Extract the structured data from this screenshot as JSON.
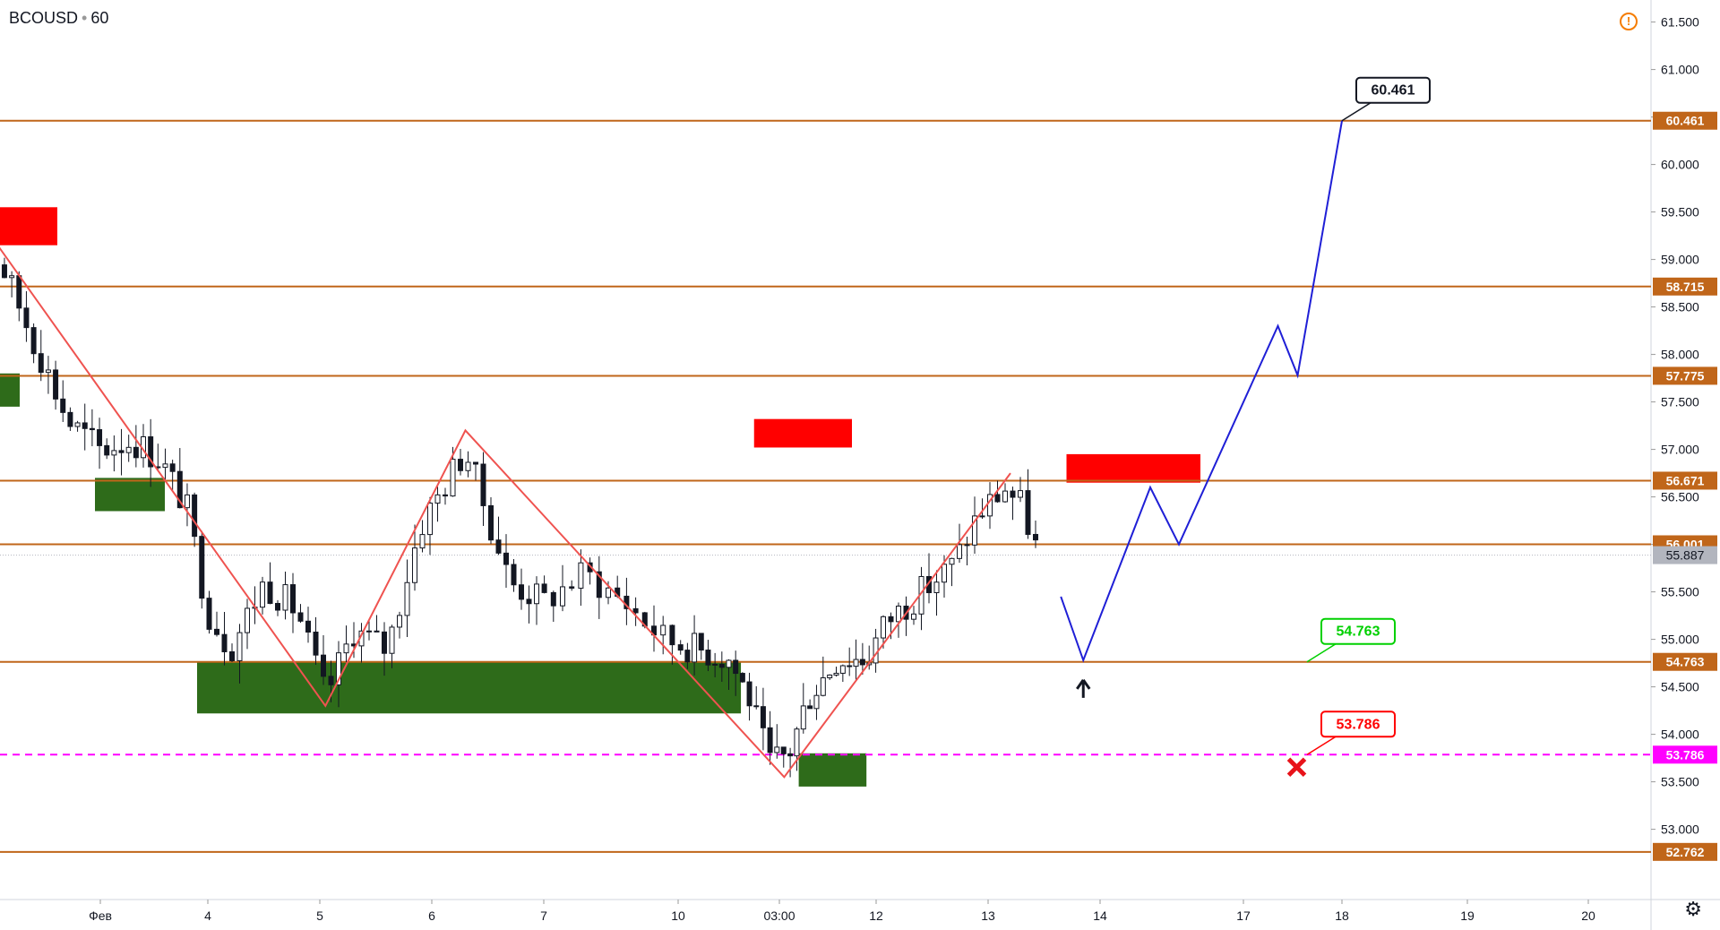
{
  "header": {
    "symbol": "BCOUSD",
    "interval": "60"
  },
  "icons": {
    "warning": "warning-icon",
    "settings": "gear-icon",
    "arrow": "up-arrow-icon",
    "cross": "cross-icon"
  },
  "colors": {
    "level_line": "#c0661a",
    "magenta": "#ff00ff",
    "zigzag": "#ef5350",
    "forecast": "#1f1fd6",
    "supply": "#ff0000",
    "demand": "#2e6b1a",
    "candle_up": "#ffffff",
    "candle_down": "#131722",
    "green_label": "#00d000",
    "red_label": "#ff0000"
  },
  "chart_data": {
    "type": "candlestick",
    "ylim": [
      52.6,
      61.6
    ],
    "grid": false,
    "y_ticks": [
      "53.000",
      "53.500",
      "54.000",
      "54.500",
      "55.000",
      "55.500",
      "56.000",
      "56.500",
      "57.000",
      "57.500",
      "58.000",
      "58.500",
      "59.000",
      "59.500",
      "60.000",
      "60.500",
      "61.000",
      "61.500"
    ],
    "x_ticks": [
      "Фев",
      "4",
      "5",
      "6",
      "7",
      "10",
      "03:00",
      "12",
      "13",
      "14",
      "17",
      "18",
      "19",
      "20"
    ],
    "levels": [
      {
        "value": 60.461,
        "label": "60.461",
        "style": "solid"
      },
      {
        "value": 58.715,
        "label": "58.715",
        "style": "solid"
      },
      {
        "value": 57.775,
        "label": "57.775",
        "style": "solid"
      },
      {
        "value": 56.671,
        "label": "56.671",
        "style": "solid"
      },
      {
        "value": 56.001,
        "label": "56.001",
        "style": "solid"
      },
      {
        "value": 54.763,
        "label": "54.763",
        "style": "solid"
      },
      {
        "value": 53.786,
        "label": "53.786",
        "style": "dashed"
      },
      {
        "value": 52.762,
        "label": "52.762",
        "style": "solid"
      }
    ],
    "last_price": {
      "value": 55.887,
      "label": "55.887"
    },
    "callouts": [
      {
        "text": "60.461",
        "value": 60.461,
        "color": "black"
      },
      {
        "text": "54.763",
        "value": 54.763,
        "color": "green"
      },
      {
        "text": "53.786",
        "value": 53.786,
        "color": "red"
      }
    ],
    "zones": [
      {
        "kind": "supply",
        "x": [
          -1.3,
          -0.4
        ],
        "y": [
          59.15,
          59.55
        ]
      },
      {
        "kind": "demand",
        "x": [
          -1.3,
          -0.75
        ],
        "y": [
          57.45,
          57.8
        ]
      },
      {
        "kind": "demand",
        "x": [
          -0.05,
          0.6
        ],
        "y": [
          56.35,
          56.7
        ]
      },
      {
        "kind": "demand",
        "x": [
          0.9,
          5.62
        ],
        "y": [
          54.22,
          54.76
        ]
      },
      {
        "kind": "supply",
        "x": [
          5.75,
          6.75
        ],
        "y": [
          57.02,
          57.32
        ]
      },
      {
        "kind": "demand",
        "x": [
          6.2,
          6.9
        ],
        "y": [
          53.45,
          53.8
        ]
      },
      {
        "kind": "supply",
        "x": [
          8.7,
          9.7
        ],
        "y": [
          56.65,
          56.95
        ]
      }
    ],
    "zigzag": [
      {
        "x": -1.1,
        "y": 59.38
      },
      {
        "x": 2.05,
        "y": 54.3
      },
      {
        "x": 3.3,
        "y": 57.2
      },
      {
        "x": 6.05,
        "y": 53.55
      },
      {
        "x": 8.2,
        "y": 56.75
      }
    ],
    "forecast": [
      {
        "x": 8.65,
        "y": 55.45
      },
      {
        "x": 8.85,
        "y": 54.78
      },
      {
        "x": 9.35,
        "y": 56.6
      },
      {
        "x": 9.55,
        "y": 56.0
      },
      {
        "x": 10.35,
        "y": 58.3
      },
      {
        "x": 10.55,
        "y": 57.78
      },
      {
        "x": 11.0,
        "y": 60.46
      }
    ],
    "candles_seed": 17,
    "candle_path": [
      {
        "x": -1.3,
        "y": 58.4
      },
      {
        "x": -1.1,
        "y": 59.3
      },
      {
        "x": -0.9,
        "y": 58.9
      },
      {
        "x": -0.6,
        "y": 58.1
      },
      {
        "x": -0.3,
        "y": 57.3
      },
      {
        "x": 0.0,
        "y": 57.0
      },
      {
        "x": 0.3,
        "y": 57.1
      },
      {
        "x": 0.55,
        "y": 56.9
      },
      {
        "x": 0.8,
        "y": 56.4
      },
      {
        "x": 1.0,
        "y": 55.3
      },
      {
        "x": 1.2,
        "y": 54.9
      },
      {
        "x": 1.5,
        "y": 55.6
      },
      {
        "x": 1.8,
        "y": 55.3
      },
      {
        "x": 2.05,
        "y": 54.4
      },
      {
        "x": 2.3,
        "y": 55.1
      },
      {
        "x": 2.6,
        "y": 54.9
      },
      {
        "x": 2.9,
        "y": 56.2
      },
      {
        "x": 3.1,
        "y": 56.6
      },
      {
        "x": 3.3,
        "y": 57.0
      },
      {
        "x": 3.5,
        "y": 56.3
      },
      {
        "x": 3.7,
        "y": 55.6
      },
      {
        "x": 4.0,
        "y": 55.4
      },
      {
        "x": 4.3,
        "y": 55.7
      },
      {
        "x": 4.6,
        "y": 55.4
      },
      {
        "x": 4.9,
        "y": 55.0
      },
      {
        "x": 5.2,
        "y": 54.9
      },
      {
        "x": 5.5,
        "y": 54.8
      },
      {
        "x": 5.7,
        "y": 54.4
      },
      {
        "x": 5.9,
        "y": 53.7
      },
      {
        "x": 6.1,
        "y": 53.8
      },
      {
        "x": 6.3,
        "y": 54.4
      },
      {
        "x": 6.6,
        "y": 54.8
      },
      {
        "x": 6.9,
        "y": 54.8
      },
      {
        "x": 7.1,
        "y": 55.2
      },
      {
        "x": 7.4,
        "y": 55.5
      },
      {
        "x": 7.7,
        "y": 55.8
      },
      {
        "x": 7.9,
        "y": 56.3
      },
      {
        "x": 8.15,
        "y": 56.6
      },
      {
        "x": 8.3,
        "y": 56.4
      },
      {
        "x": 8.45,
        "y": 55.9
      }
    ]
  }
}
